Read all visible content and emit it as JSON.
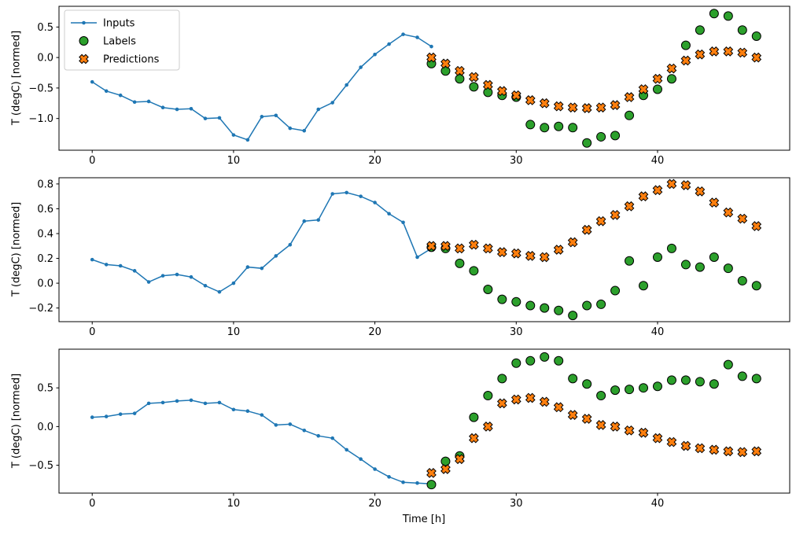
{
  "figure": {
    "background": "#ffffff",
    "axes_edge_color": "#000000",
    "tick_color": "#000000",
    "legend_border_color": "#cccccc"
  },
  "chart_data": [
    {
      "type": "line",
      "title": "",
      "xlabel": "",
      "ylabel": "T (degC) [normed]",
      "xlim": [
        -2.35,
        49.35
      ],
      "ylim": [
        -1.52,
        0.84
      ],
      "grid": false,
      "xticks": {
        "values": [
          0,
          10,
          20,
          30,
          40
        ],
        "labels": [
          "0",
          "10",
          "20",
          "30",
          "40"
        ]
      },
      "yticks": {
        "values": [
          0.5,
          0.0,
          -0.5,
          -1.0
        ],
        "labels": [
          "0.5",
          "0.0",
          "−0.5",
          "−1.0"
        ]
      },
      "legend": {
        "show": true,
        "position": "upper-left"
      },
      "series": [
        {
          "name": "Inputs",
          "kind": "line-dot",
          "color": "#1f77b4",
          "x_start": 0,
          "y": [
            -0.4,
            -0.55,
            -0.62,
            -0.73,
            -0.72,
            -0.82,
            -0.85,
            -0.84,
            -1.0,
            -0.99,
            -1.27,
            -1.35,
            -0.97,
            -0.95,
            -1.16,
            -1.2,
            -0.85,
            -0.74,
            -0.45,
            -0.16,
            0.05,
            0.22,
            0.38,
            0.33,
            0.18
          ]
        },
        {
          "name": "Labels",
          "kind": "circle",
          "color": "#2ca02c",
          "edge_color": "#000000",
          "x_start": 24,
          "y": [
            -0.1,
            -0.22,
            -0.35,
            -0.48,
            -0.57,
            -0.62,
            -0.65,
            -1.1,
            -1.15,
            -1.13,
            -1.15,
            -1.4,
            -1.3,
            -1.28,
            -0.95,
            -0.62,
            -0.52,
            -0.35,
            0.2,
            0.45,
            0.72,
            0.68,
            0.45,
            0.35
          ]
        },
        {
          "name": "Predictions",
          "kind": "x-marker",
          "color": "#ff7f0e",
          "edge_color": "#000000",
          "x_start": 24,
          "y": [
            0.0,
            -0.1,
            -0.22,
            -0.32,
            -0.45,
            -0.55,
            -0.62,
            -0.7,
            -0.75,
            -0.8,
            -0.82,
            -0.83,
            -0.82,
            -0.78,
            -0.65,
            -0.52,
            -0.35,
            -0.18,
            -0.05,
            0.05,
            0.1,
            0.1,
            0.08,
            0.0
          ]
        }
      ]
    },
    {
      "type": "line",
      "title": "",
      "xlabel": "",
      "ylabel": "T (degC) [normed]",
      "xlim": [
        -2.35,
        49.35
      ],
      "ylim": [
        -0.31,
        0.85
      ],
      "grid": false,
      "xticks": {
        "values": [
          0,
          10,
          20,
          30,
          40
        ],
        "labels": [
          "0",
          "10",
          "20",
          "30",
          "40"
        ]
      },
      "yticks": {
        "values": [
          0.8,
          0.6,
          0.4,
          0.2,
          0.0,
          -0.2
        ],
        "labels": [
          "0.8",
          "0.6",
          "0.4",
          "0.2",
          "0.0",
          "−0.2"
        ]
      },
      "legend": {
        "show": false
      },
      "series": [
        {
          "name": "Inputs",
          "kind": "line-dot",
          "color": "#1f77b4",
          "x_start": 0,
          "y": [
            0.19,
            0.15,
            0.14,
            0.1,
            0.01,
            0.06,
            0.07,
            0.05,
            -0.02,
            -0.07,
            0.0,
            0.13,
            0.12,
            0.22,
            0.31,
            0.5,
            0.51,
            0.72,
            0.73,
            0.7,
            0.65,
            0.56,
            0.49,
            0.21,
            0.28
          ]
        },
        {
          "name": "Labels",
          "kind": "circle",
          "color": "#2ca02c",
          "edge_color": "#000000",
          "x_start": 24,
          "y": [
            0.29,
            0.28,
            0.16,
            0.1,
            -0.05,
            -0.13,
            -0.15,
            -0.18,
            -0.2,
            -0.22,
            -0.26,
            -0.18,
            -0.17,
            -0.06,
            0.18,
            -0.02,
            0.21,
            0.28,
            0.15,
            0.13,
            0.21,
            0.12,
            0.02,
            -0.02
          ]
        },
        {
          "name": "Predictions",
          "kind": "x-marker",
          "color": "#ff7f0e",
          "edge_color": "#000000",
          "x_start": 24,
          "y": [
            0.3,
            0.3,
            0.28,
            0.31,
            0.28,
            0.25,
            0.24,
            0.22,
            0.21,
            0.27,
            0.33,
            0.43,
            0.5,
            0.55,
            0.62,
            0.7,
            0.75,
            0.8,
            0.79,
            0.74,
            0.65,
            0.57,
            0.52,
            0.46
          ]
        }
      ]
    },
    {
      "type": "line",
      "title": "",
      "xlabel": "Time [h]",
      "ylabel": "T (degC) [normed]",
      "xlim": [
        -2.35,
        49.35
      ],
      "ylim": [
        -0.86,
        1.0
      ],
      "grid": false,
      "xticks": {
        "values": [
          0,
          10,
          20,
          30,
          40
        ],
        "labels": [
          "0",
          "10",
          "20",
          "30",
          "40"
        ]
      },
      "yticks": {
        "values": [
          0.5,
          0.0,
          -0.5
        ],
        "labels": [
          "0.5",
          "0.0",
          "−0.5"
        ]
      },
      "legend": {
        "show": false
      },
      "series": [
        {
          "name": "Inputs",
          "kind": "line-dot",
          "color": "#1f77b4",
          "x_start": 0,
          "y": [
            0.12,
            0.13,
            0.16,
            0.17,
            0.3,
            0.31,
            0.33,
            0.34,
            0.3,
            0.31,
            0.22,
            0.2,
            0.15,
            0.02,
            0.03,
            -0.05,
            -0.12,
            -0.15,
            -0.3,
            -0.42,
            -0.55,
            -0.65,
            -0.72,
            -0.73,
            -0.74
          ]
        },
        {
          "name": "Labels",
          "kind": "circle",
          "color": "#2ca02c",
          "edge_color": "#000000",
          "x_start": 24,
          "y": [
            -0.75,
            -0.45,
            -0.38,
            0.12,
            0.4,
            0.62,
            0.82,
            0.85,
            0.9,
            0.85,
            0.62,
            0.55,
            0.4,
            0.47,
            0.48,
            0.5,
            0.52,
            0.6,
            0.6,
            0.58,
            0.55,
            0.8,
            0.65,
            0.62
          ]
        },
        {
          "name": "Predictions",
          "kind": "x-marker",
          "color": "#ff7f0e",
          "edge_color": "#000000",
          "x_start": 24,
          "y": [
            -0.6,
            -0.55,
            -0.42,
            -0.15,
            0.0,
            0.3,
            0.35,
            0.37,
            0.32,
            0.25,
            0.15,
            0.1,
            0.02,
            0.0,
            -0.05,
            -0.08,
            -0.15,
            -0.2,
            -0.25,
            -0.28,
            -0.3,
            -0.32,
            -0.33,
            -0.32
          ]
        }
      ]
    }
  ]
}
